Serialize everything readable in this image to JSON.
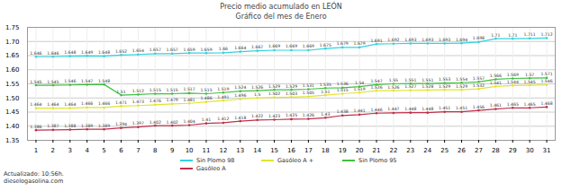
{
  "chart_data": {
    "type": "line",
    "title": "Precio medio acumulado en LEÓN",
    "subtitle": "Gráfico del mes de Enero",
    "annotations": [
      "Actualizado: 10:56h.",
      "dieselogasolina.com"
    ],
    "x": [
      1,
      2,
      3,
      4,
      5,
      6,
      7,
      8,
      9,
      10,
      11,
      12,
      13,
      14,
      15,
      16,
      17,
      18,
      19,
      20,
      21,
      22,
      23,
      24,
      25,
      26,
      27,
      28,
      29,
      30,
      31
    ],
    "xlim": [
      0.5,
      31.5
    ],
    "xticks": [
      1,
      2,
      3,
      4,
      5,
      6,
      7,
      8,
      9,
      10,
      11,
      12,
      13,
      14,
      15,
      16,
      17,
      18,
      19,
      20,
      21,
      22,
      23,
      24,
      25,
      26,
      27,
      28,
      29,
      30,
      31
    ],
    "ylim": [
      1.35,
      1.75
    ],
    "yticks": [
      {
        "value": 1.35,
        "label": "1.35"
      },
      {
        "value": 1.4,
        "label": "1.40"
      },
      {
        "value": 1.45,
        "label": "1.45"
      },
      {
        "value": 1.5,
        "label": "1.50"
      },
      {
        "value": 1.55,
        "label": "1.55"
      },
      {
        "value": 1.6,
        "label": "1.60"
      },
      {
        "value": 1.65,
        "label": "1.65"
      },
      {
        "value": 1.7,
        "label": "1.70"
      },
      {
        "value": 1.75,
        "label": "1.75"
      }
    ],
    "grid": true,
    "data_labels": true,
    "marker": "circle",
    "legend": "bottom",
    "series": [
      {
        "name": "Sin Plomo 98",
        "color": "#33d3df",
        "values": [
          1.646,
          1.646,
          1.648,
          1.649,
          1.648,
          1.652,
          1.654,
          1.657,
          1.657,
          1.659,
          1.659,
          1.66,
          1.664,
          1.667,
          1.669,
          1.669,
          1.669,
          1.675,
          1.679,
          1.679,
          1.691,
          1.692,
          1.693,
          1.693,
          1.693,
          1.694,
          1.698,
          1.71,
          1.71,
          1.711,
          1.712
        ]
      },
      {
        "name": "Gasóleo A +",
        "color": "#e3e32e",
        "values": [
          1.464,
          1.464,
          1.464,
          1.466,
          1.466,
          1.471,
          1.473,
          1.476,
          1.479,
          1.481,
          1.486,
          1.491,
          1.496,
          1.5,
          1.502,
          1.503,
          1.505,
          1.51,
          1.515,
          1.519,
          1.526,
          1.526,
          1.527,
          1.528,
          1.529,
          1.529,
          1.532,
          1.541,
          1.544,
          1.545,
          1.546
        ]
      },
      {
        "name": "Sin Plomo 95",
        "color": "#3fbf3f",
        "values": [
          1.545,
          1.545,
          1.546,
          1.547,
          1.548,
          1.51,
          1.512,
          1.515,
          1.515,
          1.517,
          1.515,
          1.519,
          1.524,
          1.526,
          1.529,
          1.529,
          1.531,
          1.535,
          1.536,
          1.54,
          1.547,
          1.55,
          1.551,
          1.551,
          1.553,
          1.554,
          1.557,
          1.566,
          1.569,
          1.57,
          1.571
        ]
      },
      {
        "name": "Gasóleo A",
        "color": "#c0304a",
        "values": [
          1.386,
          1.387,
          1.388,
          1.389,
          1.389,
          1.394,
          1.397,
          1.402,
          1.402,
          1.404,
          1.41,
          1.412,
          1.418,
          1.422,
          1.423,
          1.425,
          1.426,
          1.43,
          1.438,
          1.441,
          1.446,
          1.447,
          1.448,
          1.448,
          1.451,
          1.451,
          1.456,
          1.461,
          1.465,
          1.465,
          1.468
        ]
      }
    ]
  }
}
